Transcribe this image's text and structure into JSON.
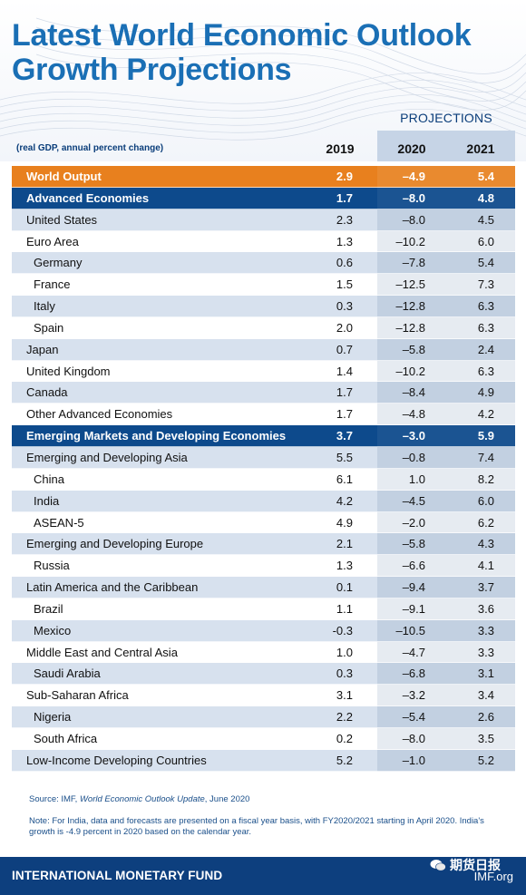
{
  "title_line1": "Latest World Economic Outlook",
  "title_line2": "Growth Projections",
  "projections_label": "PROJECTIONS",
  "unit_label": "(real GDP, annual percent change)",
  "years": [
    "2019",
    "2020",
    "2021"
  ],
  "colors": {
    "title": "#1a6fb5",
    "world_row": "#e8801e",
    "group_row": "#0d4a8c",
    "stripe": "#d7e1ee",
    "footer": "#0d3f7e"
  },
  "rows": [
    {
      "label": "World Output",
      "v2019": "2.9",
      "v2020": "–4.9",
      "v2021": "5.4",
      "style": "world",
      "level": 0
    },
    {
      "label": "Advanced Economies",
      "v2019": "1.7",
      "v2020": "–8.0",
      "v2021": "4.8",
      "style": "group",
      "level": 0
    },
    {
      "label": "United States",
      "v2019": "2.3",
      "v2020": "–8.0",
      "v2021": "4.5",
      "style": "even",
      "level": 0
    },
    {
      "label": "Euro Area",
      "v2019": "1.3",
      "v2020": "–10.2",
      "v2021": "6.0",
      "style": "odd",
      "level": 0
    },
    {
      "label": "Germany",
      "v2019": "0.6",
      "v2020": "–7.8",
      "v2021": "5.4",
      "style": "even",
      "level": 1
    },
    {
      "label": "France",
      "v2019": "1.5",
      "v2020": "–12.5",
      "v2021": "7.3",
      "style": "odd",
      "level": 1
    },
    {
      "label": "Italy",
      "v2019": "0.3",
      "v2020": "–12.8",
      "v2021": "6.3",
      "style": "even",
      "level": 1
    },
    {
      "label": "Spain",
      "v2019": "2.0",
      "v2020": "–12.8",
      "v2021": "6.3",
      "style": "odd",
      "level": 1
    },
    {
      "label": "Japan",
      "v2019": "0.7",
      "v2020": "–5.8",
      "v2021": "2.4",
      "style": "even",
      "level": 0
    },
    {
      "label": "United Kingdom",
      "v2019": "1.4",
      "v2020": "–10.2",
      "v2021": "6.3",
      "style": "odd",
      "level": 0
    },
    {
      "label": "Canada",
      "v2019": "1.7",
      "v2020": "–8.4",
      "v2021": "4.9",
      "style": "even",
      "level": 0
    },
    {
      "label": "Other Advanced Economies",
      "v2019": "1.7",
      "v2020": "–4.8",
      "v2021": "4.2",
      "style": "odd",
      "level": 0
    },
    {
      "label": "Emerging Markets and Developing Economies",
      "v2019": "3.7",
      "v2020": "–3.0",
      "v2021": "5.9",
      "style": "group",
      "level": 0
    },
    {
      "label": "Emerging and Developing Asia",
      "v2019": "5.5",
      "v2020": "–0.8",
      "v2021": "7.4",
      "style": "even",
      "level": 0
    },
    {
      "label": "China",
      "v2019": "6.1",
      "v2020": "1.0",
      "v2021": "8.2",
      "style": "odd",
      "level": 1
    },
    {
      "label": "India",
      "v2019": "4.2",
      "v2020": "–4.5",
      "v2021": "6.0",
      "style": "even",
      "level": 1
    },
    {
      "label": "ASEAN-5",
      "v2019": "4.9",
      "v2020": "–2.0",
      "v2021": "6.2",
      "style": "odd",
      "level": 1
    },
    {
      "label": "Emerging and Developing Europe",
      "v2019": "2.1",
      "v2020": "–5.8",
      "v2021": "4.3",
      "style": "even",
      "level": 0
    },
    {
      "label": "Russia",
      "v2019": "1.3",
      "v2020": "–6.6",
      "v2021": "4.1",
      "style": "odd",
      "level": 1
    },
    {
      "label": "Latin America and the Caribbean",
      "v2019": "0.1",
      "v2020": "–9.4",
      "v2021": "3.7",
      "style": "even",
      "level": 0
    },
    {
      "label": "Brazil",
      "v2019": "1.1",
      "v2020": "–9.1",
      "v2021": "3.6",
      "style": "odd",
      "level": 1
    },
    {
      "label": "Mexico",
      "v2019": "-0.3",
      "v2020": "–10.5",
      "v2021": "3.3",
      "style": "even",
      "level": 1
    },
    {
      "label": "Middle East and Central Asia",
      "v2019": "1.0",
      "v2020": "–4.7",
      "v2021": "3.3",
      "style": "odd",
      "level": 0
    },
    {
      "label": "Saudi Arabia",
      "v2019": "0.3",
      "v2020": "–6.8",
      "v2021": "3.1",
      "style": "even",
      "level": 1
    },
    {
      "label": "Sub-Saharan Africa",
      "v2019": "3.1",
      "v2020": "–3.2",
      "v2021": "3.4",
      "style": "odd",
      "level": 0
    },
    {
      "label": "Nigeria",
      "v2019": "2.2",
      "v2020": "–5.4",
      "v2021": "2.6",
      "style": "even",
      "level": 1
    },
    {
      "label": "South Africa",
      "v2019": "0.2",
      "v2020": "–8.0",
      "v2021": "3.5",
      "style": "odd",
      "level": 1
    },
    {
      "label": "Low-Income Developing Countries",
      "v2019": "5.2",
      "v2020": "–1.0",
      "v2021": "5.2",
      "style": "even",
      "level": 0
    }
  ],
  "chart_data": {
    "type": "table",
    "title": "Latest World Economic Outlook Growth Projections",
    "subtitle": "(real GDP, annual percent change)",
    "columns": [
      "2019",
      "2020",
      "2021"
    ],
    "projection_columns": [
      "2020",
      "2021"
    ],
    "rows": [
      {
        "name": "World Output",
        "values": [
          2.9,
          -4.9,
          5.4
        ]
      },
      {
        "name": "Advanced Economies",
        "values": [
          1.7,
          -8.0,
          4.8
        ]
      },
      {
        "name": "United States",
        "values": [
          2.3,
          -8.0,
          4.5
        ]
      },
      {
        "name": "Euro Area",
        "values": [
          1.3,
          -10.2,
          6.0
        ]
      },
      {
        "name": "Germany",
        "values": [
          0.6,
          -7.8,
          5.4
        ]
      },
      {
        "name": "France",
        "values": [
          1.5,
          -12.5,
          7.3
        ]
      },
      {
        "name": "Italy",
        "values": [
          0.3,
          -12.8,
          6.3
        ]
      },
      {
        "name": "Spain",
        "values": [
          2.0,
          -12.8,
          6.3
        ]
      },
      {
        "name": "Japan",
        "values": [
          0.7,
          -5.8,
          2.4
        ]
      },
      {
        "name": "United Kingdom",
        "values": [
          1.4,
          -10.2,
          6.3
        ]
      },
      {
        "name": "Canada",
        "values": [
          1.7,
          -8.4,
          4.9
        ]
      },
      {
        "name": "Other Advanced Economies",
        "values": [
          1.7,
          -4.8,
          4.2
        ]
      },
      {
        "name": "Emerging Markets and Developing Economies",
        "values": [
          3.7,
          -3.0,
          5.9
        ]
      },
      {
        "name": "Emerging and Developing Asia",
        "values": [
          5.5,
          -0.8,
          7.4
        ]
      },
      {
        "name": "China",
        "values": [
          6.1,
          1.0,
          8.2
        ]
      },
      {
        "name": "India",
        "values": [
          4.2,
          -4.5,
          6.0
        ]
      },
      {
        "name": "ASEAN-5",
        "values": [
          4.9,
          -2.0,
          6.2
        ]
      },
      {
        "name": "Emerging and Developing Europe",
        "values": [
          2.1,
          -5.8,
          4.3
        ]
      },
      {
        "name": "Russia",
        "values": [
          1.3,
          -6.6,
          4.1
        ]
      },
      {
        "name": "Latin America and the Caribbean",
        "values": [
          0.1,
          -9.4,
          3.7
        ]
      },
      {
        "name": "Brazil",
        "values": [
          1.1,
          -9.1,
          3.6
        ]
      },
      {
        "name": "Mexico",
        "values": [
          -0.3,
          -10.5,
          3.3
        ]
      },
      {
        "name": "Middle East and Central Asia",
        "values": [
          1.0,
          -4.7,
          3.3
        ]
      },
      {
        "name": "Saudi Arabia",
        "values": [
          0.3,
          -6.8,
          3.1
        ]
      },
      {
        "name": "Sub-Saharan Africa",
        "values": [
          3.1,
          -3.2,
          3.4
        ]
      },
      {
        "name": "Nigeria",
        "values": [
          2.2,
          -5.4,
          2.6
        ]
      },
      {
        "name": "South Africa",
        "values": [
          0.2,
          -8.0,
          3.5
        ]
      },
      {
        "name": "Low-Income Developing Countries",
        "values": [
          5.2,
          -1.0,
          5.2
        ]
      }
    ]
  },
  "source_prefix": "Source: IMF, ",
  "source_title": "World Economic Outlook Update",
  "source_suffix": ", June 2020",
  "note": "Note: For India, data and forecasts are presented on a fiscal year basis, with FY2020/2021 starting in April 2020. India's growth is -4.9 percent in 2020 based on the calendar year.",
  "footer_org": "INTERNATIONAL MONETARY FUND",
  "footer_site": "IMF.org",
  "watermark_text": "期货日报"
}
